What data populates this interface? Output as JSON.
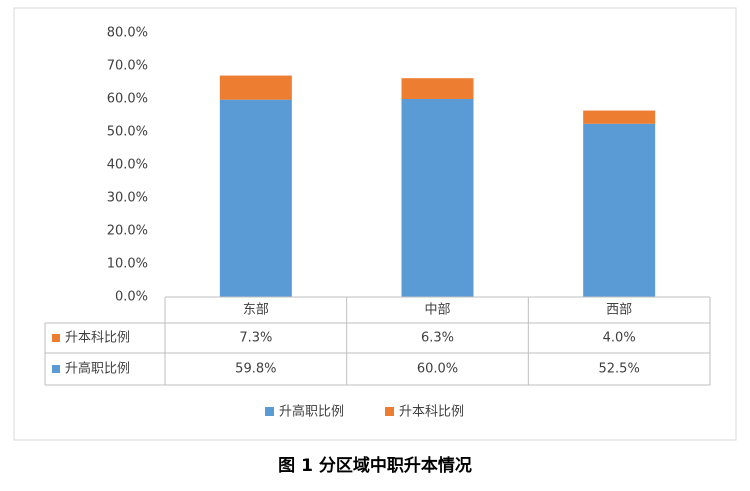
{
  "chart_data": {
    "type": "stacked-bar-table",
    "title": "图 1 分区域中职升本情况",
    "categories": [
      "东部",
      "中部",
      "西部"
    ],
    "series": [
      {
        "name": "升高职比例",
        "color": "#5b9bd5",
        "values": [
          59.8,
          60.0,
          52.5
        ],
        "value_labels": [
          "59.8%",
          "60.0%",
          "52.5%"
        ]
      },
      {
        "name": "升本科比例",
        "color": "#ed7d31",
        "values": [
          7.3,
          6.3,
          4.0
        ],
        "value_labels": [
          "7.3%",
          "6.3%",
          "4.0%"
        ]
      }
    ],
    "ylim": [
      0,
      80
    ],
    "yticks": [
      {
        "value": 0,
        "label": "0.0%"
      },
      {
        "value": 10,
        "label": "10.0%"
      },
      {
        "value": 20,
        "label": "20.0%"
      },
      {
        "value": 30,
        "label": "30.0%"
      },
      {
        "value": 40,
        "label": "40.0%"
      },
      {
        "value": 50,
        "label": "50.0%"
      },
      {
        "value": 60,
        "label": "60.0%"
      },
      {
        "value": 70,
        "label": "70.0%"
      },
      {
        "value": 80,
        "label": "80.0%"
      }
    ]
  }
}
